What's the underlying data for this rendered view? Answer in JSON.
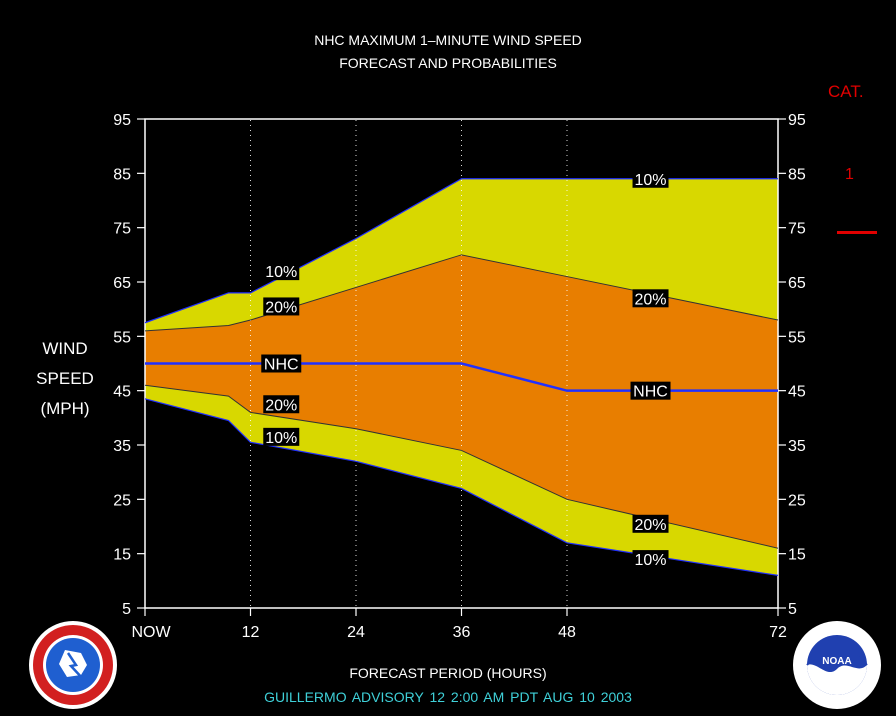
{
  "header": {
    "title_line1": "NHC MAXIMUM 1–MINUTE WIND SPEED",
    "title_line2": "FORECAST AND PROBABILITIES"
  },
  "category": {
    "title": "CAT.",
    "level": "1",
    "color": "#e00000"
  },
  "y_axis": {
    "label_line1": "WIND",
    "label_line2": "SPEED",
    "label_line3": "(MPH)"
  },
  "x_axis": {
    "label": "FORECAST PERIOD (HOURS)"
  },
  "footer": {
    "advisory": "GUILLERMO   ADVISORY  12 2:00  AM  PDT  AUG  10  2003"
  },
  "logos": {
    "left": "nws-logo-icon",
    "right": "noaa-logo-icon"
  },
  "chart_data": {
    "type": "area",
    "xlim": [
      0,
      72
    ],
    "ylim": [
      5,
      95
    ],
    "yticks": [
      5,
      15,
      25,
      35,
      45,
      55,
      65,
      75,
      85,
      95
    ],
    "xticks": [
      {
        "value": 0,
        "label": "NOW"
      },
      {
        "value": 12,
        "label": "12"
      },
      {
        "value": 24,
        "label": "24"
      },
      {
        "value": 36,
        "label": "36"
      },
      {
        "value": 48,
        "label": "48"
      },
      {
        "value": 72,
        "label": "72"
      }
    ],
    "grid_x": [
      12,
      24,
      36,
      48
    ],
    "colors": {
      "outer_band": "#d8d800",
      "inner_band": "#e87e00",
      "nhc_line": "#2030ff",
      "band_edge": "#333333"
    },
    "series": [
      {
        "name": "10%",
        "x": [
          0,
          9.5,
          12,
          24,
          36,
          48,
          72
        ],
        "values": [
          57.5,
          63,
          63,
          73,
          84,
          84,
          84
        ]
      },
      {
        "name": "20%",
        "x": [
          0,
          9.5,
          12,
          24,
          36,
          48,
          72
        ],
        "values": [
          56,
          57,
          58,
          64,
          70,
          66,
          58
        ]
      },
      {
        "name": "NHC",
        "x": [
          0,
          36,
          48,
          72
        ],
        "values": [
          50,
          50,
          45,
          45
        ]
      },
      {
        "name": "20%",
        "x": [
          0,
          9.5,
          12,
          24,
          36,
          48,
          72
        ],
        "values": [
          46,
          44,
          41,
          38,
          34,
          25,
          16
        ]
      },
      {
        "name": "10%",
        "x": [
          0,
          9.5,
          12,
          24,
          36,
          48,
          72
        ],
        "values": [
          43.5,
          39.5,
          35.5,
          32,
          27,
          17,
          11
        ]
      }
    ],
    "annotations": [
      {
        "text": "10%",
        "x": 15.5,
        "y": 67
      },
      {
        "text": "20%",
        "x": 15.5,
        "y": 60.5
      },
      {
        "text": "NHC",
        "x": 15.5,
        "y": 50
      },
      {
        "text": "20%",
        "x": 15.5,
        "y": 42.5
      },
      {
        "text": "10%",
        "x": 15.5,
        "y": 36.5
      },
      {
        "text": "10%",
        "x": 57.5,
        "y": 84
      },
      {
        "text": "20%",
        "x": 57.5,
        "y": 62
      },
      {
        "text": "NHC",
        "x": 57.5,
        "y": 45
      },
      {
        "text": "20%",
        "x": 57.5,
        "y": 20.5
      },
      {
        "text": "10%",
        "x": 57.5,
        "y": 14
      }
    ]
  }
}
